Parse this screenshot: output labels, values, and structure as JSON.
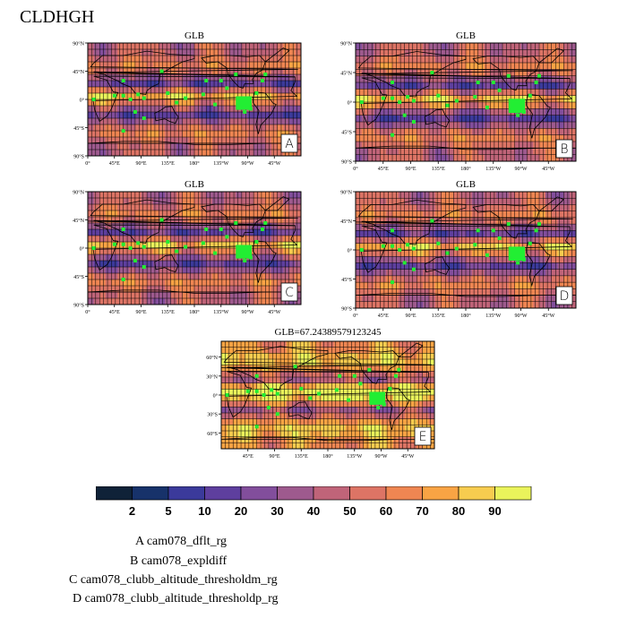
{
  "title": "CLDHGH",
  "panels": [
    {
      "id": "A",
      "title": "GLB",
      "label": "A"
    },
    {
      "id": "B",
      "title": "GLB",
      "label": "B"
    },
    {
      "id": "C",
      "title": "GLB",
      "label": "C"
    },
    {
      "id": "D",
      "title": "GLB",
      "label": "D"
    },
    {
      "id": "E",
      "title": "GLB=67.24389579123245",
      "label": "E"
    }
  ],
  "legend": [
    "A  cam078_dflt_rg",
    "B  cam078_expldiff",
    "C  cam078_clubb_altitude_thresholdm_rg",
    "D  cam078_clubb_altitude_thresholdp_rg"
  ],
  "chart_data": {
    "type": "heatmap",
    "variable": "CLDHGH",
    "lat_ticks": [
      "90°N",
      "45°N",
      "0°",
      "45°S",
      "90°S"
    ],
    "lon_ticks": [
      "0°",
      "45°E",
      "90°E",
      "135°E",
      "180°",
      "135°W",
      "90°W",
      "45°W"
    ],
    "lat_ticks_E": [
      "60°N",
      "30°N",
      "0°",
      "30°S",
      "60°S"
    ],
    "lon_ticks_E": [
      "45°E",
      "90°E",
      "135°E",
      "180°",
      "135°W",
      "90°W",
      "45°W"
    ],
    "colorbar": {
      "levels": [
        "2",
        "5",
        "10",
        "20",
        "30",
        "40",
        "50",
        "60",
        "70",
        "80",
        "90"
      ],
      "colors": [
        "#0f2238",
        "#17326a",
        "#3b3a9b",
        "#5e3f9e",
        "#824e9c",
        "#9e5a8e",
        "#c06479",
        "#dd7465",
        "#ef8652",
        "#f9a444",
        "#f7cc4f",
        "#eaf35b"
      ]
    },
    "marker_color": "#22ee33"
  }
}
